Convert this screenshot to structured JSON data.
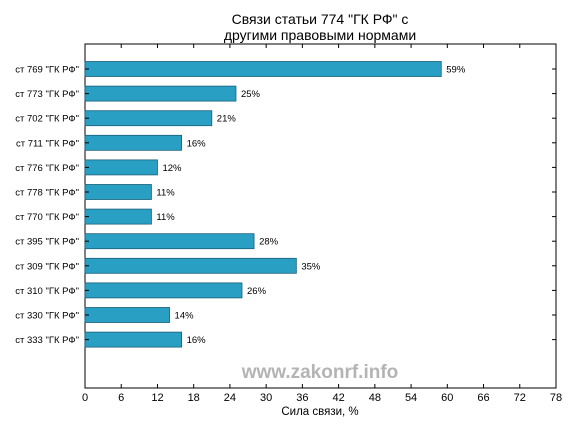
{
  "chart_data": {
    "type": "bar",
    "orientation": "horizontal",
    "title_lines": [
      "Связи статьи 774 \"ГК РФ\" с",
      "другими правовыми нормами"
    ],
    "xlabel": "Сила связи, %",
    "ylabel": "",
    "categories": [
      "ст 769 \"ГК РФ\"",
      "ст 773 \"ГК РФ\"",
      "ст 702 \"ГК РФ\"",
      "ст 711 \"ГК РФ\"",
      "ст 776 \"ГК РФ\"",
      "ст 778 \"ГК РФ\"",
      "ст 770 \"ГК РФ\"",
      "ст 395 \"ГК РФ\"",
      "ст 309 \"ГК РФ\"",
      "ст 310 \"ГК РФ\"",
      "ст 330 \"ГК РФ\"",
      "ст 333 \"ГК РФ\""
    ],
    "values": [
      59,
      25,
      21,
      16,
      12,
      11,
      11,
      28,
      35,
      26,
      14,
      16
    ],
    "value_labels": [
      "59%",
      "25%",
      "21%",
      "16%",
      "12%",
      "11%",
      "11%",
      "28%",
      "35%",
      "26%",
      "14%",
      "16%"
    ],
    "xlim": [
      0,
      78
    ],
    "xticks": [
      0,
      6,
      12,
      18,
      24,
      30,
      36,
      42,
      48,
      54,
      60,
      66,
      72,
      78
    ],
    "grid": false,
    "bar_color": "#2a9fc4",
    "bar_edge_color": "#1a5f78",
    "watermark": "www.zakonrf.info"
  }
}
